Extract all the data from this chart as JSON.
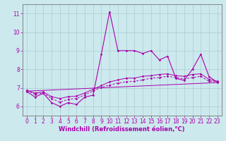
{
  "title": "",
  "xlabel": "Windchill (Refroidissement éolien,°C)",
  "bg_color": "#cce9ee",
  "grid_color": "#aacdd4",
  "line_color": "#aa00aa",
  "xlim": [
    -0.5,
    23.5
  ],
  "ylim": [
    5.5,
    11.5
  ],
  "yticks": [
    6,
    7,
    8,
    9,
    10,
    11
  ],
  "xticks": [
    0,
    1,
    2,
    3,
    4,
    5,
    6,
    7,
    8,
    9,
    10,
    11,
    12,
    13,
    14,
    15,
    16,
    17,
    18,
    19,
    20,
    21,
    22,
    23
  ],
  "series1_x": [
    0,
    1,
    2,
    3,
    4,
    5,
    6,
    7,
    8,
    9,
    10,
    11,
    12,
    13,
    14,
    15,
    16,
    17,
    18,
    19,
    20,
    21,
    22,
    23
  ],
  "series1_y": [
    6.8,
    6.5,
    6.7,
    6.2,
    6.0,
    6.2,
    6.1,
    6.5,
    6.6,
    8.8,
    11.1,
    9.0,
    9.0,
    9.0,
    8.85,
    9.0,
    8.5,
    8.7,
    7.5,
    7.4,
    8.0,
    8.8,
    7.6,
    7.3
  ],
  "series2_x": [
    0,
    1,
    2,
    3,
    4,
    5,
    6,
    7,
    8,
    9,
    10,
    11,
    12,
    13,
    14,
    15,
    16,
    17,
    18,
    19,
    20,
    21,
    22,
    23
  ],
  "series2_y": [
    6.85,
    6.65,
    6.72,
    6.42,
    6.22,
    6.38,
    6.42,
    6.62,
    6.82,
    7.02,
    7.15,
    7.25,
    7.32,
    7.35,
    7.42,
    7.52,
    7.55,
    7.62,
    7.55,
    7.48,
    7.55,
    7.62,
    7.35,
    7.32
  ],
  "series3_x": [
    0,
    1,
    2,
    3,
    4,
    5,
    6,
    7,
    8,
    9,
    10,
    11,
    12,
    13,
    14,
    15,
    16,
    17,
    18,
    19,
    20,
    21,
    22,
    23
  ],
  "series3_y": [
    6.85,
    6.72,
    6.78,
    6.52,
    6.42,
    6.52,
    6.55,
    6.72,
    6.92,
    7.12,
    7.32,
    7.42,
    7.52,
    7.52,
    7.62,
    7.65,
    7.72,
    7.75,
    7.65,
    7.62,
    7.72,
    7.75,
    7.45,
    7.35
  ],
  "series4_x": [
    0,
    23
  ],
  "series4_y": [
    6.82,
    7.28
  ],
  "fontsize_label": 6,
  "fontsize_tick": 5.5
}
